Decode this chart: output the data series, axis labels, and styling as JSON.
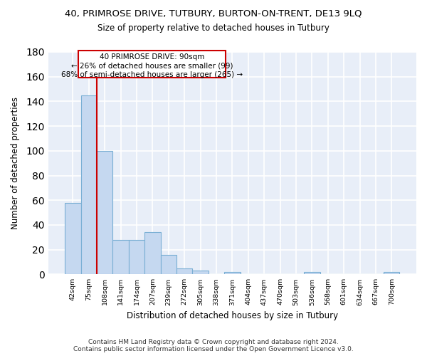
{
  "title1": "40, PRIMROSE DRIVE, TUTBURY, BURTON-ON-TRENT, DE13 9LQ",
  "title2": "Size of property relative to detached houses in Tutbury",
  "xlabel": "Distribution of detached houses by size in Tutbury",
  "ylabel": "Number of detached properties",
  "bar_labels": [
    "42sqm",
    "75sqm",
    "108sqm",
    "141sqm",
    "174sqm",
    "207sqm",
    "239sqm",
    "272sqm",
    "305sqm",
    "338sqm",
    "371sqm",
    "404sqm",
    "437sqm",
    "470sqm",
    "503sqm",
    "536sqm",
    "568sqm",
    "601sqm",
    "634sqm",
    "667sqm",
    "700sqm"
  ],
  "bar_values": [
    58,
    145,
    100,
    28,
    28,
    34,
    16,
    5,
    3,
    0,
    2,
    0,
    0,
    0,
    0,
    2,
    0,
    0,
    0,
    0,
    2
  ],
  "bar_color": "#c5d8f0",
  "bar_edge_color": "#7aafd4",
  "bar_width": 1.0,
  "ylim": [
    0,
    180
  ],
  "yticks": [
    0,
    20,
    40,
    60,
    80,
    100,
    120,
    140,
    160,
    180
  ],
  "property_line_x": 1.5,
  "property_line_color": "#cc0000",
  "annotation_line1": "40 PRIMROSE DRIVE: 90sqm",
  "annotation_line2": "← 26% of detached houses are smaller (99)",
  "annotation_line3": "68% of semi-detached houses are larger (265) →",
  "footer": "Contains HM Land Registry data © Crown copyright and database right 2024.\nContains public sector information licensed under the Open Government Licence v3.0.",
  "fig_bg_color": "#ffffff",
  "plot_bg_color": "#e8eef8",
  "grid_color": "#ffffff",
  "title1_fontsize": 9.5,
  "title2_fontsize": 8.5
}
